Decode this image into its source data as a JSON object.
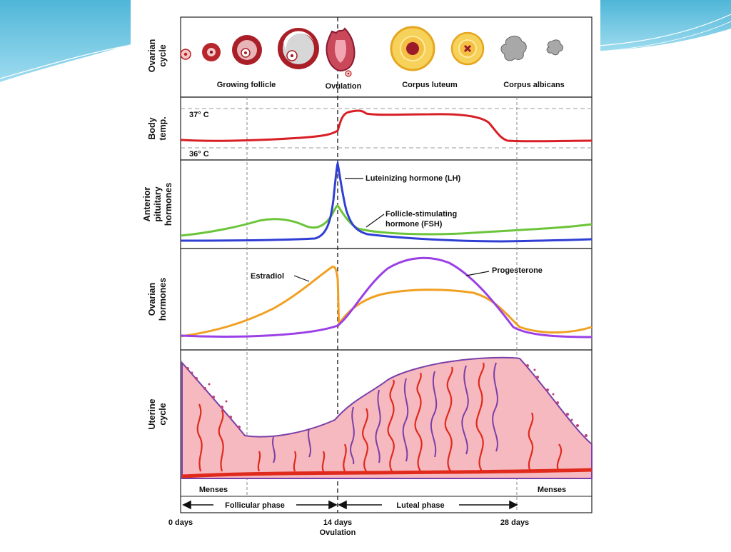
{
  "ovarian_cycle": {
    "side_label": [
      "Ovarian",
      "cycle"
    ],
    "stage_labels": {
      "growing_follicle": "Growing follicle",
      "ovulation": "Ovulation",
      "corpus_luteum": "Corpus luteum",
      "corpus_albicans": "Corpus albicans"
    }
  },
  "body_temp": {
    "side_label": [
      "Body",
      "temp."
    ],
    "high_label": "37° C",
    "low_label": "36° C"
  },
  "pituitary": {
    "side_label": [
      "Anterior",
      "pituitary",
      "hormones"
    ],
    "lh_label": "Luteinizing hormone (LH)",
    "fsh_label": [
      "Follicle-stimulating",
      "hormone (FSH)"
    ]
  },
  "ovarian_hormones": {
    "side_label": [
      "Ovarian",
      "hormones"
    ],
    "estradiol_label": "Estradiol",
    "progesterone_label": "Progesterone"
  },
  "uterine": {
    "side_label": [
      "Uterine",
      "cycle"
    ]
  },
  "phases": {
    "menses_left": "Menses",
    "menses_right": "Menses",
    "follicular": "Follicular phase",
    "luteal": "Luteal phase"
  },
  "axis": {
    "day0": "0 days",
    "day14": "14 days",
    "day14_sub": "Ovulation",
    "day28": "28 days"
  },
  "colors": {
    "temp": "#d81f26",
    "lh": "#2f3fd4",
    "fsh": "#6cc43a",
    "estradiol": "#f0a020",
    "progesterone": "#9b3fe6",
    "uterine_fill": "#f6b9bf",
    "uterine_vessel": "#e02a1c",
    "uterine_outline": "#7a3fa8"
  }
}
